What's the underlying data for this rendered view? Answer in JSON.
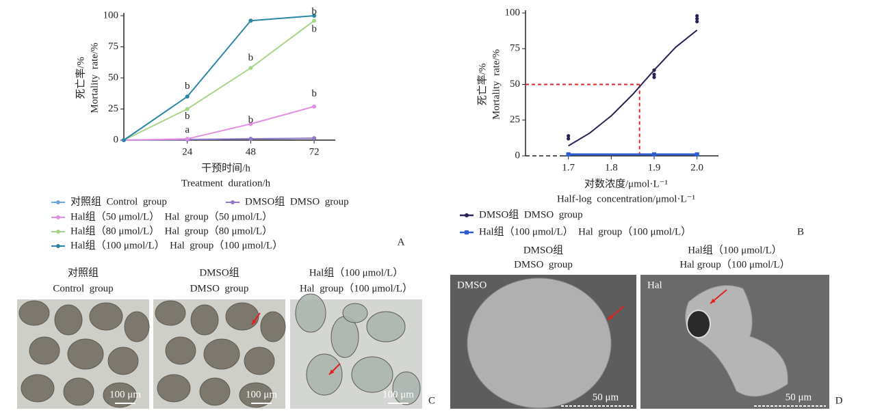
{
  "chart_data": [
    {
      "type": "line",
      "x": [
        0,
        24,
        48,
        72
      ],
      "xlim": [
        0,
        80
      ],
      "xticks": [
        24,
        48,
        72
      ],
      "ylim": [
        0,
        100
      ],
      "yticks": [
        0,
        25,
        50,
        75,
        100
      ],
      "y_label": [
        "死亡率/%",
        "Mortality  rate/%"
      ],
      "x_label": [
        "干预时间/h",
        "Treatment  duration/h"
      ],
      "panel_label": "A",
      "series": [
        {
          "name": "对照组  Control  group",
          "color": "#6fa3d8",
          "values": [
            0,
            0.5,
            1,
            1.5
          ]
        },
        {
          "name": "DMSO组  DMSO  group",
          "color": "#9178c8",
          "values": [
            0,
            0.5,
            1,
            1.5
          ]
        },
        {
          "name": "Hal组（50 μmol/L）  Hal  group（50 μmol/L）",
          "color": "#e38ee3",
          "values": [
            0,
            1,
            13,
            27
          ]
        },
        {
          "name": "Hal组（80 μmol/L）  Hal  group（80 μmol/L）",
          "color": "#a8d48a",
          "values": [
            0,
            25,
            58,
            96
          ]
        },
        {
          "name": "Hal组（100 μmol/L）  Hal  group（100 μmol/L）",
          "color": "#2a86a6",
          "values": [
            0,
            35,
            96,
            100
          ]
        }
      ],
      "annotations": [
        {
          "text": "b",
          "x": 24,
          "y": 43
        },
        {
          "text": "b",
          "x": 24,
          "y": 19
        },
        {
          "text": "a",
          "x": 24,
          "y": 8
        },
        {
          "text": "b",
          "x": 48,
          "y": 66
        },
        {
          "text": "b",
          "x": 48,
          "y": 16
        },
        {
          "text": "b",
          "x": 72,
          "y": 103
        },
        {
          "text": "b",
          "x": 72,
          "y": 89
        },
        {
          "text": "b",
          "x": 72,
          "y": 37
        }
      ]
    },
    {
      "type": "scatter",
      "xlim": [
        1.6,
        2.05
      ],
      "xticks": [
        1.7,
        1.8,
        1.9,
        {
          "value": 2,
          "label": "2.0"
        }
      ],
      "ylim": [
        0,
        100
      ],
      "yticks": [
        0,
        25,
        50,
        75,
        100
      ],
      "y_label": [
        "死亡率/%",
        "Mortality  rate/%"
      ],
      "x_label": [
        "对数浓度/μmol·L⁻¹",
        "Half-log  concentration/μmol·L⁻¹"
      ],
      "panel_label": "B",
      "series": [
        {
          "name": "DMSO组  DMSO  group",
          "color": "#2b2057",
          "x": [
            1.7,
            1.7,
            1.9,
            1.9,
            1.9,
            2,
            2,
            2
          ],
          "values": [
            14,
            12,
            60,
            57,
            55,
            98,
            96,
            94
          ],
          "fit": {
            "x": [
              1.7,
              1.75,
              1.8,
              1.85,
              1.9,
              1.95,
              2
            ],
            "values": [
              7,
              16,
              28,
              43,
              60,
              76,
              88
            ]
          }
        },
        {
          "name": "Hal组（100 μmol/L）  Hal  group（100 μmol/L）",
          "color": "#2d5fd0",
          "x": [
            1.7,
            1.7,
            1.9,
            1.9,
            2,
            2
          ],
          "values": [
            1,
            1,
            1,
            1,
            1,
            1
          ]
        }
      ],
      "ec50": {
        "x": 1.866,
        "y": 50,
        "color": "#e0262a"
      }
    }
  ],
  "panel_c": {
    "label": "C",
    "images": [
      {
        "title": [
          "对照组",
          "Control  group"
        ],
        "scale_bar": "100 μm"
      },
      {
        "title": [
          "DMSO组",
          "DMSO  group"
        ],
        "scale_bar": "100 μm"
      },
      {
        "title": [
          "Hal组（100 μmol/L）",
          "Hal  group（100 μmol/L）"
        ],
        "scale_bar": "100 μm"
      }
    ]
  },
  "panel_d": {
    "label": "D",
    "images": [
      {
        "title": [
          "DMSO组",
          "DMSO  group"
        ],
        "tag": "DMSO",
        "scale_bar": "50 μm"
      },
      {
        "title": [
          "Hal组（100 μmol/L）",
          "Hal group（100 μmol/L）"
        ],
        "tag": "Hal",
        "scale_bar": "50 μm"
      }
    ]
  }
}
